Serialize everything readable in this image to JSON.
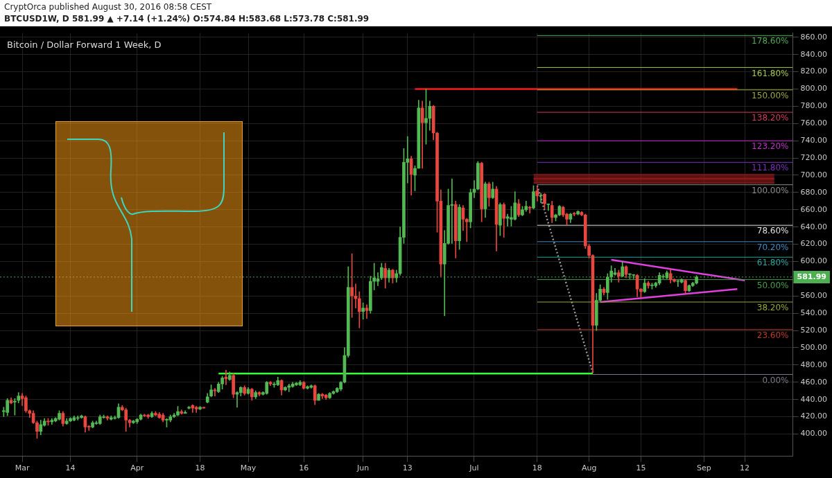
{
  "chart_data": {
    "type": "candlestick",
    "title": "Bitcoin / Dollar Forward 1 Week, D",
    "annotations": [
      "CryptOrca published August 30, 2016 08:58 CEST",
      "BTCUSD1W, D 581.99 ▲ +7.14 (+1.24%) O:574.84 H:583.68 L:573.78 C:581.99"
    ],
    "x": [
      "2016-02-25",
      "2016-02-26",
      "2016-02-27",
      "2016-02-28",
      "2016-02-29",
      "2016-03-01",
      "2016-03-02",
      "2016-03-03",
      "2016-03-04",
      "2016-03-05",
      "2016-03-06",
      "2016-03-07",
      "2016-03-08",
      "2016-03-09",
      "2016-03-10",
      "2016-03-11",
      "2016-03-12",
      "2016-03-13",
      "2016-03-14",
      "2016-03-15",
      "2016-03-16",
      "2016-03-17",
      "2016-03-18",
      "2016-03-19",
      "2016-03-20",
      "2016-03-21",
      "2016-03-22",
      "2016-03-23",
      "2016-03-24",
      "2016-03-25",
      "2016-03-26",
      "2016-03-27",
      "2016-03-28",
      "2016-03-29",
      "2016-03-30",
      "2016-03-31",
      "2016-04-01",
      "2016-04-02",
      "2016-04-03",
      "2016-04-04",
      "2016-04-05",
      "2016-04-06",
      "2016-04-07",
      "2016-04-08",
      "2016-04-09",
      "2016-04-10",
      "2016-04-11",
      "2016-04-12",
      "2016-04-13",
      "2016-04-14",
      "2016-04-15",
      "2016-04-16",
      "2016-04-17",
      "2016-04-18",
      "2016-04-19",
      "2016-04-20",
      "2016-04-21",
      "2016-04-22",
      "2016-04-23",
      "2016-04-24",
      "2016-04-25",
      "2016-04-26",
      "2016-04-27",
      "2016-04-28",
      "2016-04-29",
      "2016-04-30",
      "2016-05-01",
      "2016-05-02",
      "2016-05-03",
      "2016-05-04",
      "2016-05-05",
      "2016-05-06",
      "2016-05-07",
      "2016-05-08",
      "2016-05-09",
      "2016-05-10",
      "2016-05-11",
      "2016-05-12",
      "2016-05-13",
      "2016-05-14",
      "2016-05-15",
      "2016-05-16",
      "2016-05-17",
      "2016-05-18",
      "2016-05-19",
      "2016-05-20",
      "2016-05-21",
      "2016-05-22",
      "2016-05-23",
      "2016-05-24",
      "2016-05-25",
      "2016-05-26",
      "2016-05-27",
      "2016-05-28",
      "2016-05-29",
      "2016-05-30",
      "2016-05-31",
      "2016-06-01",
      "2016-06-02",
      "2016-06-03",
      "2016-06-04",
      "2016-06-05",
      "2016-06-06",
      "2016-06-07",
      "2016-06-08",
      "2016-06-09",
      "2016-06-10",
      "2016-06-11",
      "2016-06-12",
      "2016-06-13",
      "2016-06-14",
      "2016-06-15",
      "2016-06-16",
      "2016-06-17",
      "2016-06-18",
      "2016-06-19",
      "2016-06-20",
      "2016-06-21",
      "2016-06-22",
      "2016-06-23",
      "2016-06-24",
      "2016-06-25",
      "2016-06-26",
      "2016-06-27",
      "2016-06-28",
      "2016-06-29",
      "2016-06-30",
      "2016-07-01",
      "2016-07-02",
      "2016-07-03",
      "2016-07-04",
      "2016-07-05",
      "2016-07-06",
      "2016-07-07",
      "2016-07-08",
      "2016-07-09",
      "2016-07-10",
      "2016-07-11",
      "2016-07-12",
      "2016-07-13",
      "2016-07-14",
      "2016-07-15",
      "2016-07-16",
      "2016-07-17",
      "2016-07-18",
      "2016-07-19",
      "2016-07-20",
      "2016-07-21",
      "2016-07-22",
      "2016-07-23",
      "2016-07-24",
      "2016-07-25",
      "2016-07-26",
      "2016-07-27",
      "2016-07-28",
      "2016-07-29",
      "2016-07-30",
      "2016-07-31",
      "2016-08-01",
      "2016-08-02",
      "2016-08-03",
      "2016-08-04",
      "2016-08-05",
      "2016-08-06",
      "2016-08-07",
      "2016-08-08",
      "2016-08-09",
      "2016-08-10",
      "2016-08-11",
      "2016-08-12",
      "2016-08-13",
      "2016-08-14",
      "2016-08-15",
      "2016-08-16",
      "2016-08-17",
      "2016-08-18",
      "2016-08-19",
      "2016-08-20",
      "2016-08-21",
      "2016-08-22",
      "2016-08-23",
      "2016-08-24",
      "2016-08-25",
      "2016-08-26",
      "2016-08-27",
      "2016-08-28",
      "2016-08-29",
      "2016-08-30"
    ],
    "ohlc": [
      [
        426,
        431,
        420,
        427
      ],
      [
        425,
        441,
        421,
        439
      ],
      [
        439,
        442,
        435,
        436
      ],
      [
        437,
        441,
        422,
        438
      ],
      [
        439,
        448,
        436,
        444
      ],
      [
        444,
        447,
        433,
        441
      ],
      [
        442,
        444,
        425,
        427
      ],
      [
        427,
        428,
        419,
        424
      ],
      [
        424,
        427,
        412,
        413
      ],
      [
        413,
        415,
        395,
        403
      ],
      [
        403,
        416,
        399,
        411
      ],
      [
        410,
        418,
        409,
        415
      ],
      [
        415,
        418,
        410,
        414
      ],
      [
        414,
        418,
        411,
        416
      ],
      [
        415,
        419,
        414,
        418
      ],
      [
        417,
        427,
        416,
        424
      ],
      [
        424,
        426,
        409,
        412
      ],
      [
        412,
        418,
        411,
        415
      ],
      [
        415,
        419,
        414,
        418
      ],
      [
        416,
        421,
        415,
        419
      ],
      [
        418,
        421,
        416,
        419
      ],
      [
        419,
        422,
        418,
        421
      ],
      [
        420,
        421,
        402,
        408
      ],
      [
        409,
        410,
        404,
        408
      ],
      [
        408,
        415,
        407,
        413
      ],
      [
        412,
        415,
        411,
        413
      ],
      [
        412,
        422,
        411,
        420
      ],
      [
        419,
        422,
        418,
        420
      ],
      [
        420,
        421,
        416,
        418
      ],
      [
        417,
        421,
        416,
        419
      ],
      [
        418,
        421,
        417,
        419
      ],
      [
        419,
        435,
        418,
        431
      ],
      [
        431,
        433,
        427,
        428
      ],
      [
        428,
        430,
        403,
        416
      ],
      [
        416,
        417,
        408,
        413
      ],
      [
        413,
        416,
        412,
        415
      ],
      [
        414,
        418,
        412,
        417
      ],
      [
        417,
        423,
        416,
        422
      ],
      [
        422,
        423,
        420,
        421
      ],
      [
        422,
        423,
        418,
        420
      ],
      [
        420,
        426,
        419,
        424
      ],
      [
        424,
        426,
        421,
        422
      ],
      [
        423,
        425,
        418,
        419
      ],
      [
        422,
        424,
        414,
        416
      ],
      [
        416,
        418,
        408,
        417
      ],
      [
        416,
        422,
        414,
        420
      ],
      [
        420,
        424,
        419,
        422
      ],
      [
        422,
        432,
        421,
        426
      ],
      [
        426,
        428,
        423,
        424
      ],
      [
        424,
        427,
        424,
        425
      ],
      [
        430,
        432,
        429,
        431
      ],
      [
        433,
        434,
        425,
        430
      ],
      [
        431,
        432,
        425,
        429
      ],
      [
        429,
        432,
        428,
        431
      ],
      [
        431,
        431,
        430,
        430
      ],
      [
        437,
        447,
        436,
        443
      ],
      [
        444,
        457,
        443,
        451
      ],
      [
        451,
        453,
        444,
        450
      ],
      [
        449,
        460,
        448,
        458
      ],
      [
        458,
        467,
        452,
        465
      ],
      [
        466,
        474,
        457,
        464
      ],
      [
        463,
        472,
        462,
        468
      ],
      [
        468,
        470,
        442,
        446
      ],
      [
        446,
        449,
        431,
        448
      ],
      [
        448,
        455,
        444,
        454
      ],
      [
        454,
        456,
        445,
        447
      ],
      [
        447,
        454,
        446,
        452
      ],
      [
        452,
        453,
        439,
        443
      ],
      [
        443,
        450,
        441,
        448
      ],
      [
        448,
        449,
        444,
        446
      ],
      [
        446,
        449,
        445,
        448
      ],
      [
        447,
        461,
        446,
        460
      ],
      [
        460,
        461,
        456,
        458
      ],
      [
        457,
        460,
        454,
        458
      ],
      [
        457,
        466,
        456,
        462
      ],
      [
        462,
        463,
        445,
        451
      ],
      [
        451,
        455,
        450,
        454
      ],
      [
        454,
        458,
        449,
        456
      ],
      [
        455,
        460,
        454,
        458
      ],
      [
        457,
        460,
        456,
        459
      ],
      [
        457,
        462,
        456,
        460
      ],
      [
        460,
        461,
        452,
        453
      ],
      [
        453,
        456,
        452,
        455
      ],
      [
        454,
        457,
        453,
        456
      ],
      [
        456,
        457,
        434,
        439
      ],
      [
        439,
        447,
        439,
        446
      ],
      [
        446,
        447,
        441,
        444
      ],
      [
        445,
        446,
        440,
        442
      ],
      [
        442,
        448,
        441,
        447
      ],
      [
        447,
        450,
        446,
        449
      ],
      [
        449,
        454,
        448,
        453
      ],
      [
        452,
        461,
        450,
        460
      ],
      [
        460,
        500,
        459,
        491
      ],
      [
        491,
        594,
        489,
        570
      ],
      [
        570,
        609,
        535,
        560
      ],
      [
        560,
        574,
        546,
        557
      ],
      [
        557,
        565,
        523,
        542
      ],
      [
        542,
        552,
        533,
        546
      ],
      [
        546,
        550,
        534,
        543
      ],
      [
        543,
        583,
        540,
        577
      ],
      [
        577,
        598,
        567,
        581
      ],
      [
        577,
        587,
        572,
        580
      ],
      [
        581,
        598,
        579,
        593
      ],
      [
        592,
        598,
        569,
        581
      ],
      [
        581,
        592,
        576,
        590
      ],
      [
        590,
        591,
        575,
        581
      ],
      [
        581,
        590,
        576,
        586
      ],
      [
        586,
        640,
        584,
        628
      ],
      [
        628,
        731,
        621,
        715
      ],
      [
        715,
        745,
        691,
        719
      ],
      [
        719,
        722,
        677,
        701
      ],
      [
        700,
        711,
        682,
        708
      ],
      [
        708,
        787,
        708,
        778
      ],
      [
        778,
        786,
        708,
        761
      ],
      [
        761,
        800,
        736,
        766
      ],
      [
        766,
        786,
        752,
        780
      ],
      [
        780,
        781,
        741,
        749
      ],
      [
        749,
        750,
        634,
        670
      ],
      [
        670,
        683,
        583,
        597
      ],
      [
        597,
        636,
        537,
        621
      ],
      [
        621,
        684,
        620,
        665
      ],
      [
        665,
        696,
        621,
        666
      ],
      [
        666,
        670,
        604,
        624
      ],
      [
        624,
        666,
        614,
        663
      ],
      [
        662,
        665,
        636,
        649
      ],
      [
        649,
        650,
        623,
        646
      ],
      [
        646,
        684,
        639,
        680
      ],
      [
        680,
        694,
        674,
        684
      ],
      [
        684,
        716,
        683,
        714
      ],
      [
        714,
        715,
        646,
        661
      ],
      [
        661,
        692,
        651,
        690
      ],
      [
        690,
        692,
        664,
        674
      ],
      [
        674,
        692,
        673,
        684
      ],
      [
        684,
        687,
        612,
        643
      ],
      [
        642,
        668,
        630,
        666
      ],
      [
        666,
        668,
        628,
        650
      ],
      [
        650,
        655,
        641,
        652
      ],
      [
        649,
        664,
        641,
        651
      ],
      [
        649,
        681,
        648,
        668
      ],
      [
        667,
        672,
        652,
        654
      ],
      [
        654,
        664,
        653,
        660
      ],
      [
        660,
        670,
        658,
        664
      ],
      [
        663,
        664,
        656,
        662
      ],
      [
        662,
        688,
        661,
        681
      ],
      [
        682,
        687,
        670,
        676
      ],
      [
        676,
        679,
        668,
        677
      ],
      [
        678,
        679,
        661,
        667
      ],
      [
        666,
        667,
        659,
        666
      ],
      [
        665,
        670,
        645,
        651
      ],
      [
        651,
        655,
        647,
        654
      ],
      [
        654,
        665,
        653,
        664
      ],
      [
        663,
        664,
        652,
        654
      ],
      [
        655,
        656,
        642,
        649
      ],
      [
        649,
        656,
        645,
        655
      ],
      [
        656,
        657,
        653,
        655
      ],
      [
        655,
        659,
        654,
        658
      ],
      [
        657,
        658,
        653,
        654
      ],
      [
        654,
        655,
        615,
        618
      ],
      [
        618,
        620,
        604,
        607
      ],
      [
        607,
        608,
        471,
        526
      ],
      [
        526,
        563,
        520,
        555
      ],
      [
        555,
        573,
        554,
        568
      ],
      [
        568,
        570,
        561,
        564
      ],
      [
        564,
        586,
        556,
        582
      ],
      [
        582,
        595,
        576,
        589
      ],
      [
        585,
        592,
        584,
        587
      ],
      [
        587,
        590,
        576,
        583
      ],
      [
        583,
        600,
        582,
        594
      ],
      [
        594,
        595,
        581,
        585
      ],
      [
        585,
        586,
        580,
        585
      ],
      [
        584,
        585,
        580,
        584
      ],
      [
        584,
        585,
        559,
        568
      ],
      [
        568,
        569,
        558,
        565
      ],
      [
        565,
        580,
        564,
        575
      ],
      [
        575,
        577,
        569,
        572
      ],
      [
        572,
        575,
        568,
        572
      ],
      [
        572,
        576,
        570,
        575
      ],
      [
        575,
        587,
        573,
        584
      ],
      [
        582,
        585,
        580,
        582
      ],
      [
        581,
        589,
        580,
        587
      ],
      [
        586,
        591,
        575,
        579
      ],
      [
        579,
        580,
        576,
        577
      ],
      [
        577,
        578,
        571,
        577
      ],
      [
        576,
        580,
        575,
        579
      ],
      [
        578,
        579,
        563,
        566
      ],
      [
        566,
        573,
        565,
        572
      ],
      [
        572,
        576,
        571,
        574.84
      ],
      [
        574.84,
        583.68,
        573.78,
        581.99
      ]
    ],
    "series": [
      {
        "type": "line",
        "color": "#8b1a1a",
        "x": [
          "2016-07-17",
          "2016-09-20"
        ],
        "values": [
          696,
          696
        ],
        "lower": [
          691,
          691
        ],
        "upper": [
          701,
          701
        ]
      },
      {
        "type": "line",
        "name": "0.00%",
        "color": "#787b86",
        "x": [
          "2016-08-02",
          "2016-09-25"
        ],
        "values": [
          469,
          469
        ]
      },
      {
        "type": "line",
        "name": "23.60%",
        "color": "#c0392b",
        "x": [
          "2016-07-18",
          "2016-09-25"
        ],
        "values": [
          521,
          521
        ]
      },
      {
        "type": "line",
        "name": "38.20%",
        "color": "#9aa832",
        "x": [
          "2016-07-18",
          "2016-09-25"
        ],
        "values": [
          553,
          553
        ]
      },
      {
        "type": "line",
        "name": "50.00%",
        "color": "#43a047",
        "x": [
          "2016-07-18",
          "2016-09-25"
        ],
        "values": [
          579,
          579
        ]
      },
      {
        "type": "line",
        "name": "61.80%",
        "color": "#26a69a",
        "x": [
          "2016-07-18",
          "2016-09-25"
        ],
        "values": [
          605,
          605
        ]
      },
      {
        "type": "line",
        "name": "70.20%",
        "color": "#3c8dc4",
        "x": [
          "2016-07-18",
          "2016-09-25"
        ],
        "values": [
          623,
          623
        ]
      },
      {
        "type": "line",
        "name": "78.60%",
        "color": "#e0e0e0",
        "x": [
          "2016-07-18",
          "2016-09-25"
        ],
        "values": [
          642,
          642
        ]
      },
      {
        "type": "line",
        "name": "100.00%",
        "color": "#8a8a8a",
        "x": [
          "2016-07-18",
          "2016-09-25"
        ],
        "values": [
          689,
          689
        ]
      },
      {
        "type": "line",
        "name": "111.80%",
        "color": "#7b2fbf",
        "x": [
          "2016-07-18",
          "2016-09-25"
        ],
        "values": [
          715,
          715
        ]
      },
      {
        "type": "line",
        "name": "123.20%",
        "color": "#c22fc9",
        "x": [
          "2016-07-18",
          "2016-09-25"
        ],
        "values": [
          740,
          740
        ]
      },
      {
        "type": "line",
        "name": "138.20%",
        "color": "#d23a5e",
        "x": [
          "2016-07-18",
          "2016-09-25"
        ],
        "values": [
          773,
          773
        ]
      },
      {
        "type": "line",
        "name": "150.00%",
        "color": "#a2a83a",
        "x": [
          "2016-07-18",
          "2016-09-25"
        ],
        "values": [
          799,
          799
        ]
      },
      {
        "type": "line",
        "name": "161.80%",
        "color": "#a5c94a",
        "x": [
          "2016-07-18",
          "2016-09-25"
        ],
        "values": [
          825,
          825
        ]
      },
      {
        "type": "line",
        "name": "178.60%",
        "color": "#4caf50",
        "x": [
          "2016-07-18",
          "2016-09-25"
        ],
        "values": [
          862,
          862
        ]
      },
      {
        "type": "line",
        "color": "#ff1a1a",
        "x": [
          "2016-06-15",
          "2016-09-10"
        ],
        "values": [
          800,
          800
        ]
      },
      {
        "type": "line",
        "color": "#33ff33",
        "x": [
          "2016-04-23",
          "2016-08-02"
        ],
        "values": [
          470,
          470
        ]
      },
      {
        "type": "line",
        "color": "#e040e0",
        "x": [
          "2016-08-07",
          "2016-09-12"
        ],
        "values": [
          602,
          578
        ]
      },
      {
        "type": "line",
        "color": "#e040e0",
        "x": [
          "2016-08-04",
          "2016-09-10"
        ],
        "values": [
          553,
          568
        ]
      },
      {
        "type": "line",
        "color": "#999999",
        "line_style": "dotted",
        "x": [
          "2016-07-18",
          "2016-08-02"
        ],
        "values": [
          688,
          471
        ]
      }
    ],
    "ref_lines": [
      {
        "axis": "y",
        "value": 581.99,
        "label": "581.99",
        "color": "#4caf50",
        "line_style": "dotted"
      }
    ],
    "xlim": [
      "2016-02-24",
      "2016-09-25"
    ],
    "xticks": [
      {
        "value": "2016-03-01",
        "label": "Mar"
      },
      {
        "value": "2016-03-14",
        "label": "14"
      },
      {
        "value": "2016-04-01",
        "label": "Apr"
      },
      {
        "value": "2016-04-18",
        "label": "18"
      },
      {
        "value": "2016-05-01",
        "label": "May"
      },
      {
        "value": "2016-05-16",
        "label": "16"
      },
      {
        "value": "2016-06-01",
        "label": "Jun"
      },
      {
        "value": "2016-06-13",
        "label": "13"
      },
      {
        "value": "2016-07-01",
        "label": "Jul"
      },
      {
        "value": "2016-07-18",
        "label": "18"
      },
      {
        "value": "2016-08-01",
        "label": "Aug"
      },
      {
        "value": "2016-08-15",
        "label": "15"
      },
      {
        "value": "2016-09-01",
        "label": "Sep"
      },
      {
        "value": "2016-09-12",
        "label": "12"
      }
    ],
    "ylim": [
      374,
      865
    ],
    "yticks": [
      {
        "value": 400,
        "label": "400.00"
      },
      {
        "value": 420,
        "label": "420.00"
      },
      {
        "value": 440,
        "label": "440.00"
      },
      {
        "value": 460,
        "label": "460.00"
      },
      {
        "value": 480,
        "label": "480.00"
      },
      {
        "value": 500,
        "label": "500.00"
      },
      {
        "value": 520,
        "label": "520.00"
      },
      {
        "value": 540,
        "label": "540.00"
      },
      {
        "value": 560,
        "label": "560.00"
      },
      {
        "value": 600,
        "label": "600.00"
      },
      {
        "value": 620,
        "label": "620.00"
      },
      {
        "value": 640,
        "label": "640.00"
      },
      {
        "value": 660,
        "label": "660.00"
      },
      {
        "value": 680,
        "label": "680.00"
      },
      {
        "value": 700,
        "label": "700.00"
      },
      {
        "value": 720,
        "label": "720.00"
      },
      {
        "value": 740,
        "label": "740.00"
      },
      {
        "value": 760,
        "label": "760.00"
      },
      {
        "value": 780,
        "label": "780.00"
      },
      {
        "value": 800,
        "label": "800.00"
      },
      {
        "value": 820,
        "label": "820.00"
      },
      {
        "value": 840,
        "label": "840.00"
      },
      {
        "value": 860,
        "label": "860.00"
      }
    ],
    "grid": true,
    "legend": false,
    "marker": "none",
    "line_style": "solid"
  }
}
